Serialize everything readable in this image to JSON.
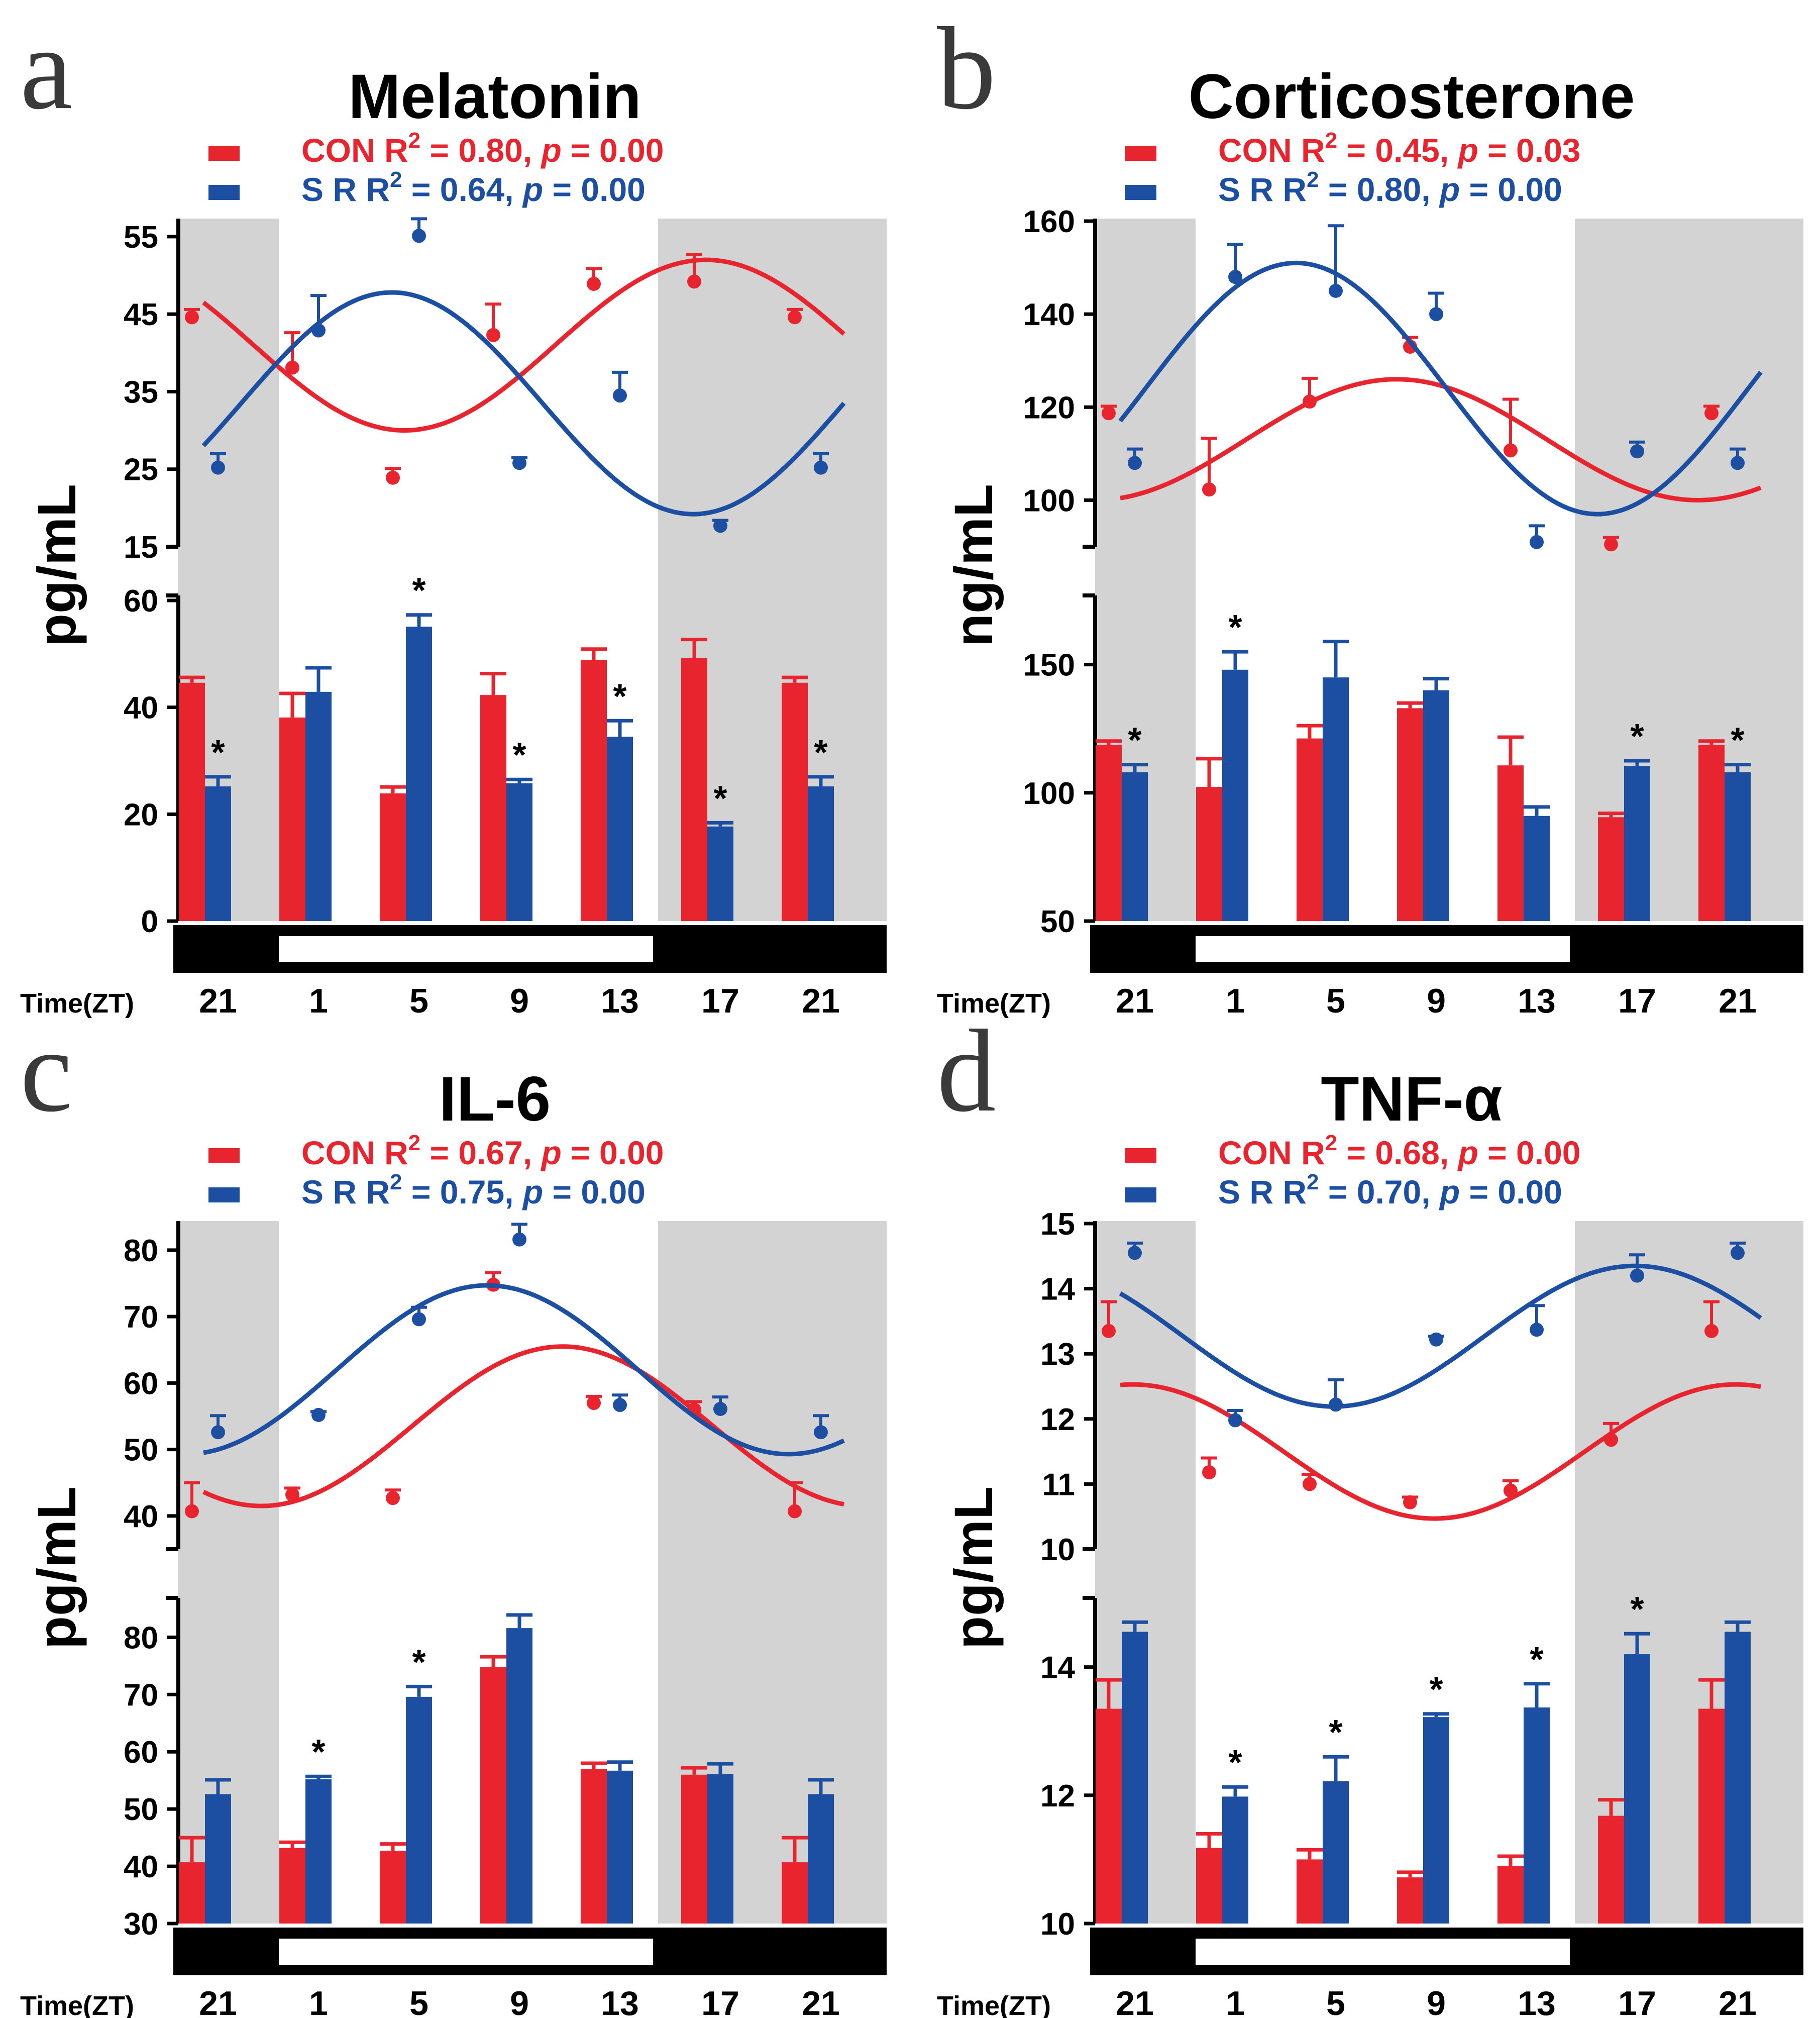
{
  "figure": {
    "time_label": "Time(ZT)",
    "colors": {
      "con": "#e8242f",
      "sr": "#1c4fa2",
      "shade": "#d3d3d3",
      "bar_dark": "#000000",
      "bar_light": "#ffffff"
    }
  },
  "chart_data": [
    {
      "type": "bar",
      "panel_letter": "a",
      "title": "Melatonin",
      "ylabel": "pg/mL",
      "categories": [
        "21",
        "1",
        "5",
        "9",
        "13",
        "17",
        "21"
      ],
      "legend": [
        {
          "name": "CON",
          "text": "CON R",
          "r2": "0.80",
          "p": "0.00"
        },
        {
          "name": "S R",
          "text": "S   R R",
          "r2": "0.64",
          "p": "0.00"
        }
      ],
      "top_panel": {
        "ylim": [
          15,
          57
        ],
        "ticks": [
          "15",
          "25",
          "35",
          "45",
          "55"
        ]
      },
      "bottom_panel": {
        "ylim": [
          0,
          60
        ],
        "ticks": [
          "0",
          "20",
          "40",
          "60"
        ]
      },
      "series": [
        {
          "name": "CON",
          "values": [
            44.6,
            38.1,
            23.9,
            42.3,
            48.9,
            49.2,
            44.6
          ],
          "errors": [
            1.0,
            4.5,
            1.2,
            4.0,
            2.0,
            3.5,
            1.0
          ]
        },
        {
          "name": "S R",
          "values": [
            25.2,
            42.9,
            55.1,
            25.8,
            34.5,
            17.7,
            25.2
          ],
          "errors": [
            1.8,
            4.5,
            2.2,
            0.7,
            3.0,
            0.7,
            1.8
          ]
        }
      ],
      "significance": [
        "*",
        "",
        "*",
        "*",
        "*",
        "*",
        "*"
      ],
      "fit": {
        "CON": {
          "mesor": 41.0,
          "amplitude": 11.0,
          "acrophase_zt": 17.0
        },
        "S R": {
          "mesor": 33.5,
          "amplitude": 14.3,
          "acrophase_zt": 4.5
        }
      },
      "x_range_zt": [
        -3.0,
        22.5
      ],
      "dark_phase_zt": [
        [
          -5.0,
          0.0
        ],
        [
          12.0,
          24.0
        ]
      ]
    },
    {
      "type": "bar",
      "panel_letter": "b",
      "title": "Corticosterone",
      "ylabel": "ng/mL",
      "categories": [
        "21",
        "1",
        "5",
        "9",
        "13",
        "17",
        "21"
      ],
      "legend": [
        {
          "name": "CON",
          "text": "CON R",
          "r2": "0.45",
          "p": "0.03"
        },
        {
          "name": "S R",
          "text": "S   R R",
          "r2": "0.80",
          "p": "0.00"
        }
      ],
      "top_panel": {
        "ylim": [
          90,
          160
        ],
        "ticks": [
          "100",
          "120",
          "140",
          "160"
        ]
      },
      "bottom_panel": {
        "ylim": [
          50,
          175
        ],
        "ticks": [
          "50",
          "100",
          "150"
        ]
      },
      "series": [
        {
          "name": "CON",
          "values": [
            118.7,
            102.3,
            121.2,
            133.0,
            110.7,
            90.5,
            118.7
          ],
          "errors": [
            1.5,
            11.0,
            5.0,
            2.0,
            11.0,
            1.5,
            1.5
          ]
        },
        {
          "name": "S R",
          "values": [
            108.0,
            148.0,
            145.0,
            140.0,
            91.0,
            110.5,
            108.0
          ],
          "errors": [
            3.0,
            7.0,
            14.0,
            4.5,
            3.5,
            2.0,
            3.0
          ]
        }
      ],
      "significance": [
        "*",
        "*",
        "",
        "",
        "",
        "*",
        "*"
      ],
      "fit": {
        "CON": {
          "mesor": 113.0,
          "amplitude": 13.0,
          "acrophase_zt": 8.0
        },
        "S R": {
          "mesor": 124.0,
          "amplitude": 27.0,
          "acrophase_zt": 4.0
        }
      },
      "x_range_zt": [
        -3.0,
        22.5
      ],
      "dark_phase_zt": [
        [
          -5.0,
          0.0
        ],
        [
          12.0,
          24.0
        ]
      ]
    },
    {
      "type": "bar",
      "panel_letter": "c",
      "title": "IL-6",
      "ylabel": "pg/mL",
      "categories": [
        "21",
        "1",
        "5",
        "9",
        "13",
        "17",
        "21"
      ],
      "legend": [
        {
          "name": "CON",
          "text": "CON R",
          "r2": "0.67",
          "p": "0.00"
        },
        {
          "name": "S R",
          "text": "S   R R",
          "r2": "0.75",
          "p": "0.00"
        }
      ],
      "top_panel": {
        "ylim": [
          35,
          84
        ],
        "ticks": [
          "40",
          "50",
          "60",
          "70",
          "80"
        ]
      },
      "bottom_panel": {
        "ylim": [
          30,
          86
        ],
        "ticks": [
          "30",
          "40",
          "50",
          "60",
          "70",
          "80"
        ]
      },
      "series": [
        {
          "name": "CON",
          "values": [
            40.7,
            43.2,
            42.7,
            74.8,
            57.0,
            56.0,
            40.7
          ],
          "errors": [
            4.3,
            1.0,
            1.2,
            1.8,
            1.0,
            1.2,
            4.3
          ]
        },
        {
          "name": "S R",
          "values": [
            52.6,
            55.2,
            69.6,
            81.6,
            56.7,
            56.1,
            52.6
          ],
          "errors": [
            2.5,
            0.5,
            1.8,
            2.3,
            1.5,
            1.8,
            2.5
          ]
        }
      ],
      "significance": [
        "",
        "*",
        "*",
        "",
        "",
        "",
        ""
      ],
      "fit": {
        "CON": {
          "mesor": 53.5,
          "amplitude": 12.0,
          "acrophase_zt": 11.3
        },
        "S R": {
          "mesor": 62.0,
          "amplitude": 12.7,
          "acrophase_zt": 8.3
        }
      },
      "x_range_zt": [
        -3.0,
        22.5
      ],
      "dark_phase_zt": [
        [
          -5.0,
          0.0
        ],
        [
          12.0,
          24.0
        ]
      ]
    },
    {
      "type": "bar",
      "panel_letter": "d",
      "title": "TNF-α",
      "ylabel": "pg/mL",
      "categories": [
        "21",
        "1",
        "5",
        "9",
        "13",
        "17",
        "21"
      ],
      "legend": [
        {
          "name": "CON",
          "text": "CON R",
          "r2": "0.68",
          "p": "0.00"
        },
        {
          "name": "S R",
          "text": "S   R R",
          "r2": "0.70",
          "p": "0.00"
        }
      ],
      "top_panel": {
        "ylim": [
          10,
          15
        ],
        "ticks": [
          "10",
          "11",
          "12",
          "13",
          "14",
          "15"
        ]
      },
      "bottom_panel": {
        "ylim": [
          10,
          15
        ],
        "ticks": [
          "10",
          "12",
          "14"
        ]
      },
      "series": [
        {
          "name": "CON",
          "values": [
            13.35,
            11.18,
            11.0,
            10.72,
            10.9,
            11.68,
            13.35
          ],
          "errors": [
            0.45,
            0.22,
            0.15,
            0.08,
            0.15,
            0.25,
            0.45
          ]
        },
        {
          "name": "S R",
          "values": [
            14.55,
            11.98,
            12.22,
            13.22,
            13.37,
            14.2,
            14.55
          ],
          "errors": [
            0.15,
            0.15,
            0.38,
            0.05,
            0.37,
            0.32,
            0.15
          ]
        }
      ],
      "significance": [
        "",
        "*",
        "*",
        "*",
        "*",
        "*",
        ""
      ],
      "fit": {
        "CON": {
          "mesor": 11.5,
          "amplitude": 1.03,
          "acrophase_zt": 21.5
        },
        "S R": {
          "mesor": 13.27,
          "amplitude": 1.08,
          "acrophase_zt": 17.5
        }
      },
      "x_range_zt": [
        -3.0,
        22.5
      ],
      "dark_phase_zt": [
        [
          -5.0,
          0.0
        ],
        [
          12.0,
          24.0
        ]
      ]
    }
  ]
}
